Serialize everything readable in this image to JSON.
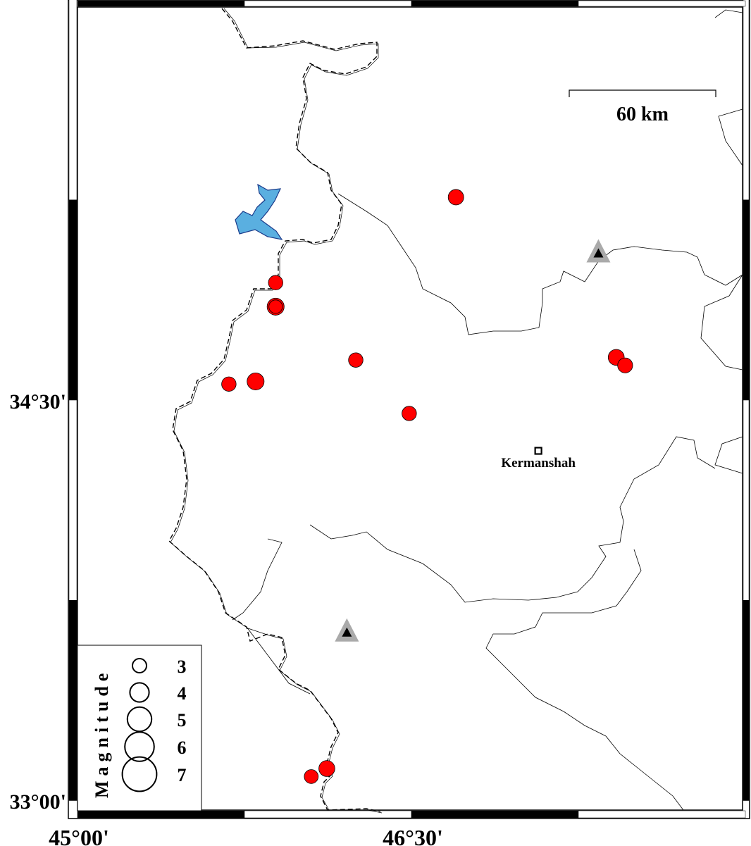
{
  "map": {
    "extent": {
      "lon": [
        45.0,
        48.0
      ],
      "lat": [
        33.0,
        36.0
      ]
    },
    "lon_ticks": [
      {
        "value": 45.0,
        "label": "45°00'"
      },
      {
        "value": 46.5,
        "label": "46°30'"
      }
    ],
    "lat_ticks": [
      {
        "value": 34.5,
        "label": "34°30'"
      },
      {
        "value": 33.0,
        "label": "33°00'"
      }
    ],
    "scale_bar": {
      "label": "60 km",
      "km": 60
    },
    "city": {
      "name": "Kermanshah",
      "lon": 47.07,
      "lat": 34.31
    },
    "stations": [
      {
        "lon": 47.34,
        "lat": 35.05
      },
      {
        "lon": 46.21,
        "lat": 33.63
      }
    ],
    "events": [
      {
        "lon": 46.7,
        "lat": 35.26,
        "mag": 3.0
      },
      {
        "lon": 45.89,
        "lat": 34.94,
        "mag": 2.8
      },
      {
        "lon": 45.89,
        "lat": 34.85,
        "mag": 3.3
      },
      {
        "lon": 45.89,
        "lat": 34.85,
        "mag": 2.6
      },
      {
        "lon": 46.25,
        "lat": 34.65,
        "mag": 2.8
      },
      {
        "lon": 45.68,
        "lat": 34.56,
        "mag": 2.8
      },
      {
        "lon": 45.8,
        "lat": 34.57,
        "mag": 3.3
      },
      {
        "lon": 46.49,
        "lat": 34.45,
        "mag": 2.8
      },
      {
        "lon": 47.42,
        "lat": 34.66,
        "mag": 3.1
      },
      {
        "lon": 47.46,
        "lat": 34.63,
        "mag": 2.9
      },
      {
        "lon": 46.05,
        "lat": 33.09,
        "mag": 2.7
      },
      {
        "lon": 46.12,
        "lat": 33.12,
        "mag": 3.1
      }
    ],
    "colors": {
      "event": "#ff0000",
      "lake": "#5aafe0",
      "station": "#aaaaaa"
    }
  },
  "legend": {
    "title": "Magnitude",
    "items": [
      {
        "mag": 3,
        "label": "3"
      },
      {
        "mag": 4,
        "label": "4"
      },
      {
        "mag": 5,
        "label": "5"
      },
      {
        "mag": 6,
        "label": "6"
      },
      {
        "mag": 7,
        "label": "7"
      }
    ]
  }
}
